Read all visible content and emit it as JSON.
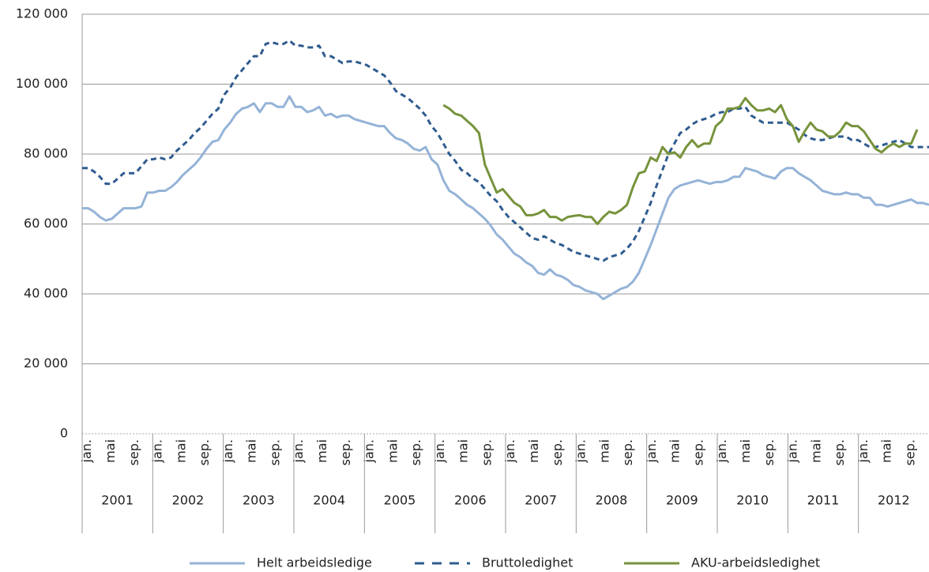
{
  "chart_data": {
    "type": "line",
    "categories": [
      "jan.",
      null,
      null,
      null,
      "mai",
      null,
      null,
      null,
      "sep.",
      null,
      null,
      null,
      "jan.",
      null,
      null,
      null,
      "mai",
      null,
      null,
      null,
      "sep.",
      null,
      null,
      null,
      "jan.",
      null,
      null,
      null,
      "mai",
      null,
      null,
      null,
      "sep.",
      null,
      null,
      null,
      "jan.",
      null,
      null,
      null,
      "mai",
      null,
      null,
      null,
      "sep.",
      null,
      null,
      null,
      "jan.",
      null,
      null,
      null,
      "mai",
      null,
      null,
      null,
      "sep.",
      null,
      null,
      null,
      "jan.",
      null,
      null,
      null,
      "mai",
      null,
      null,
      null,
      "sep.",
      null,
      null,
      null,
      "jan.",
      null,
      null,
      null,
      "mai",
      null,
      null,
      null,
      "sep.",
      null,
      null,
      null,
      "jan.",
      null,
      null,
      null,
      "mai",
      null,
      null,
      null,
      "sep.",
      null,
      null,
      null,
      "jan.",
      null,
      null,
      null,
      "mai",
      null,
      null,
      null,
      "sep.",
      null,
      null,
      null,
      "jan.",
      null,
      null,
      null,
      "mai",
      null,
      null,
      null,
      "sep.",
      null,
      null,
      null,
      "jan.",
      null,
      null,
      null,
      "mai",
      null,
      null,
      null,
      "sep.",
      null,
      null,
      null,
      "jan.",
      null,
      null,
      null,
      "mai",
      null,
      null,
      null,
      "sep.",
      null,
      null,
      null
    ],
    "category_groups": [
      "2001",
      "2002",
      "2003",
      "2004",
      "2005",
      "2006",
      "2007",
      "2008",
      "2009",
      "2010",
      "2011",
      "2012"
    ],
    "ylim": [
      0,
      120000
    ],
    "yticks": [
      {
        "value": 0,
        "label": "0"
      },
      {
        "value": 20000,
        "label": "20 000"
      },
      {
        "value": 40000,
        "label": "40 000"
      },
      {
        "value": 60000,
        "label": "60 000"
      },
      {
        "value": 80000,
        "label": "80 000"
      },
      {
        "value": 100000,
        "label": "100 000"
      },
      {
        "value": 120000,
        "label": "120 000"
      }
    ],
    "grid": true,
    "legend": "bottom",
    "series": [
      {
        "name": "Helt arbeidsledige",
        "color": "#95b3d7",
        "dash": false,
        "values": [
          64500,
          64500,
          63500,
          62000,
          61000,
          61500,
          63000,
          64500,
          64500,
          64500,
          65000,
          69000,
          69000,
          69500,
          69500,
          70500,
          72000,
          74000,
          75500,
          77000,
          79000,
          81500,
          83500,
          84000,
          87000,
          89000,
          91500,
          93000,
          93500,
          94500,
          92000,
          94500,
          94500,
          93500,
          93500,
          96500,
          93500,
          93500,
          92000,
          92500,
          93500,
          91000,
          91500,
          90500,
          91000,
          91000,
          90000,
          89500,
          89000,
          88500,
          88000,
          88000,
          86000,
          84500,
          84000,
          83000,
          81500,
          81000,
          82000,
          78500,
          77000,
          72500,
          69500,
          68500,
          67000,
          65500,
          64500,
          63000,
          61500,
          59500,
          57000,
          55500,
          53500,
          51500,
          50500,
          49000,
          48000,
          46000,
          45500,
          47000,
          45500,
          45000,
          44000,
          42500,
          42000,
          41000,
          40500,
          40000,
          38500,
          39500,
          40500,
          41500,
          42000,
          43500,
          46000,
          50000,
          54000,
          58500,
          63000,
          67500,
          70000,
          71000,
          71500,
          72000,
          72500,
          72000,
          71500,
          72000,
          72000,
          72500,
          73500,
          73500,
          76000,
          75500,
          75000,
          74000,
          73500,
          73000,
          75000,
          76000,
          76000,
          74500,
          73500,
          72500,
          71000,
          69500,
          69000,
          68500,
          68500,
          69000,
          68500,
          68500,
          67500,
          67500,
          65500,
          65500,
          65000,
          65500,
          66000,
          66500,
          67000,
          66000,
          66000,
          65500
        ]
      },
      {
        "name": "Bruttoledighet",
        "color": "#2f5c8f",
        "dash": true,
        "values": [
          76000,
          76000,
          75000,
          73500,
          71500,
          71500,
          73000,
          74500,
          74500,
          74500,
          76500,
          78500,
          78500,
          79000,
          78500,
          79000,
          81000,
          82500,
          84000,
          86000,
          87500,
          89500,
          91500,
          93000,
          97000,
          99000,
          102000,
          104000,
          106000,
          108000,
          108000,
          111500,
          112000,
          111500,
          111500,
          112500,
          111000,
          111000,
          110500,
          110500,
          111000,
          108000,
          108000,
          107000,
          106000,
          106500,
          106500,
          106000,
          105500,
          104500,
          103500,
          102500,
          100500,
          98000,
          97000,
          96000,
          94500,
          93000,
          91000,
          88000,
          86000,
          83000,
          80000,
          78000,
          75500,
          74500,
          73000,
          72000,
          70000,
          68000,
          66500,
          64000,
          62000,
          60500,
          59000,
          57500,
          56000,
          55500,
          56500,
          55500,
          54500,
          54000,
          53000,
          52000,
          51500,
          51000,
          50500,
          50000,
          49500,
          50500,
          51000,
          51500,
          53000,
          55000,
          58000,
          62000,
          66000,
          71000,
          75500,
          80000,
          83000,
          86000,
          87000,
          88500,
          89500,
          90000,
          90500,
          91500,
          92000,
          92000,
          93000,
          93000,
          93500,
          91000,
          90000,
          89000,
          89000,
          89000,
          89000,
          89000,
          88000,
          87000,
          85500,
          84500,
          84000,
          84000,
          84500,
          85000,
          85000,
          85000,
          84000,
          84000,
          83000,
          82000,
          82000,
          82500,
          83000,
          83500,
          84000,
          83000,
          82000,
          82000,
          82000,
          82000
        ]
      },
      {
        "name": "AKU-arbeidsledighet",
        "color": "#77933c",
        "dash": false,
        "values": [
          null,
          null,
          null,
          null,
          null,
          null,
          null,
          null,
          null,
          null,
          null,
          null,
          null,
          null,
          null,
          null,
          null,
          null,
          null,
          null,
          null,
          null,
          null,
          null,
          null,
          null,
          null,
          null,
          null,
          null,
          null,
          null,
          null,
          null,
          null,
          null,
          null,
          null,
          null,
          null,
          null,
          null,
          null,
          null,
          null,
          null,
          null,
          null,
          null,
          null,
          null,
          null,
          null,
          null,
          null,
          null,
          null,
          null,
          null,
          null,
          null,
          94000,
          93000,
          91500,
          91000,
          89500,
          88000,
          86000,
          77000,
          73000,
          69000,
          70000,
          68000,
          66000,
          65000,
          62500,
          62500,
          63000,
          64000,
          62000,
          62000,
          61000,
          62000,
          62300,
          62500,
          62000,
          62000,
          60000,
          62000,
          63500,
          63000,
          64000,
          65500,
          70500,
          74500,
          75000,
          79000,
          78000,
          82000,
          80000,
          80500,
          79000,
          82000,
          84000,
          82000,
          83000,
          83000,
          88000,
          89500,
          93000,
          93000,
          93500,
          96000,
          94000,
          92500,
          92500,
          93000,
          92000,
          94000,
          90000,
          88000,
          83500,
          86500,
          89000,
          87000,
          86500,
          85000,
          85000,
          86500,
          89000,
          88000,
          88000,
          86500,
          84000,
          81500,
          80500,
          82000,
          83000,
          82000,
          83000,
          83000,
          87000,
          null,
          null
        ]
      }
    ]
  }
}
